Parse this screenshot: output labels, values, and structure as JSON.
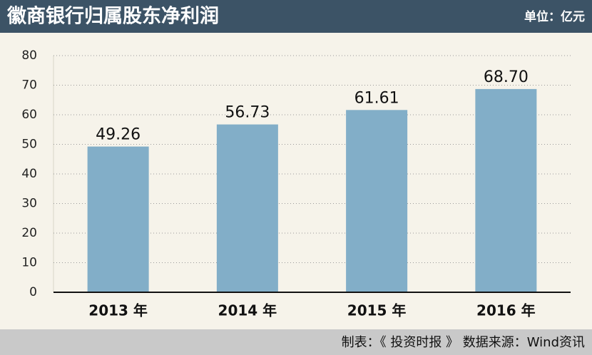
{
  "chart_data": {
    "type": "bar",
    "title": "徽商银行归属股东净利润",
    "unit": "单位：亿元",
    "source": "制表：《 投资时报 》 数据来源：Wind资讯",
    "categories": [
      "2013 年",
      "2014 年",
      "2015 年",
      "2016 年"
    ],
    "values": [
      49.26,
      56.73,
      61.61,
      68.7
    ],
    "value_labels": [
      "49.26",
      "56.73",
      "61.61",
      "68.70"
    ],
    "color": "#82aec8",
    "ylim": [
      0,
      80
    ],
    "yticks": [
      0,
      10,
      20,
      30,
      40,
      50,
      60,
      70,
      80
    ],
    "grid": true
  }
}
